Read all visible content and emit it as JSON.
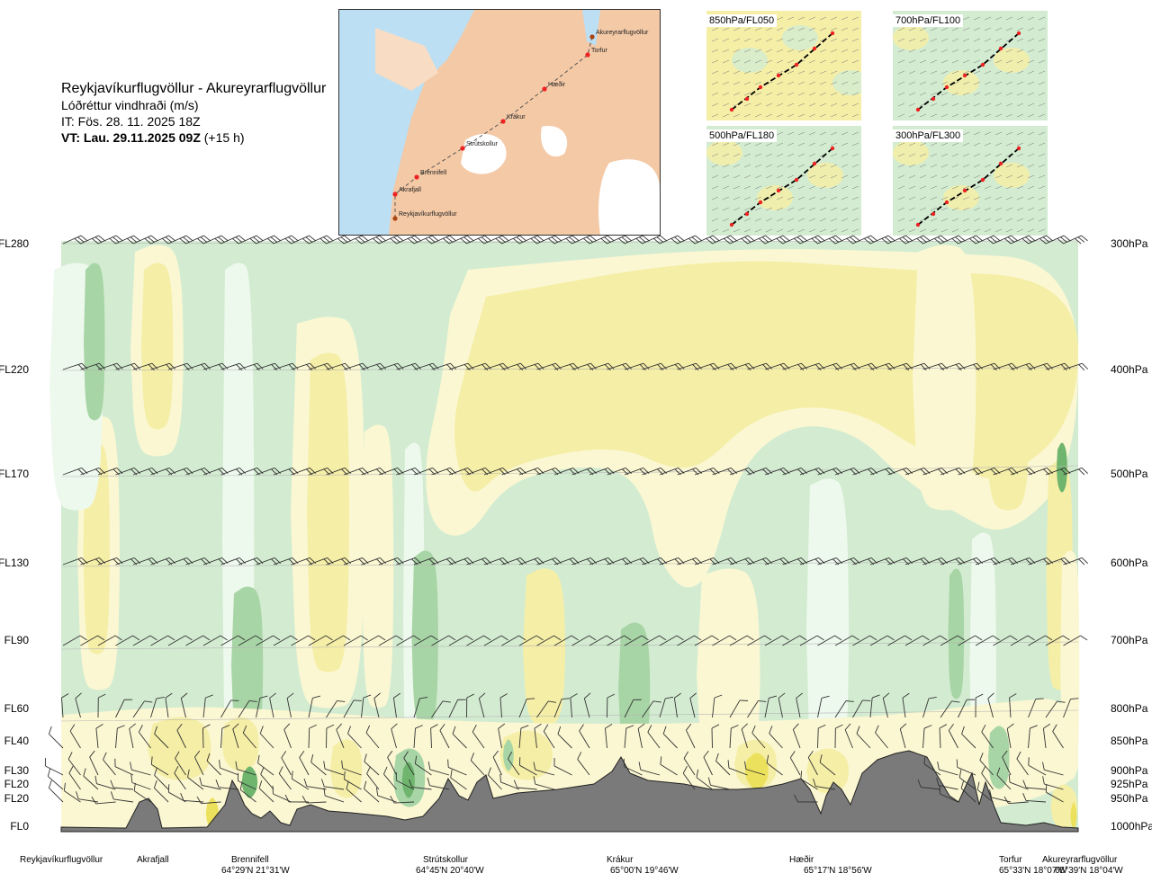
{
  "header": {
    "route": "Reykjavíkurflugvöllur - Akureyrarflugvöllur",
    "variable": "Lóðréttur vindhraði (m/s)",
    "issue": "IT: Fös. 28. 11. 2025 18Z",
    "valid_bold": "VT: Lau. 29.11.2025 09Z",
    "valid_offset": "(+15 h)"
  },
  "route_map": {
    "waypoints": [
      {
        "name": "Akureyrarflugvöllur"
      },
      {
        "name": "Torfur"
      },
      {
        "name": "Hæðir"
      },
      {
        "name": "Krákur"
      },
      {
        "name": "Strútskollur"
      },
      {
        "name": "Brennifell"
      },
      {
        "name": "Akrafjall"
      },
      {
        "name": "Reykjavíkurflugvöllur"
      }
    ]
  },
  "mini_maps": [
    {
      "label": "850hPa/FL050"
    },
    {
      "label": "700hPa/FL100"
    },
    {
      "label": "500hPa/FL180"
    },
    {
      "label": "300hPa/FL300"
    }
  ],
  "colors": {
    "green_light": "#d3ecd1",
    "green_mid": "#a8d5a6",
    "green_dark": "#6fb56e",
    "very_pale": "#eef9ee",
    "cream": "#fbf7d2",
    "yellow": "#f5eea6",
    "yellow_dark": "#ece15c",
    "terrain": "#7a7a7a",
    "map_land": "#f4c9a6",
    "map_sea": "#bcdff3"
  },
  "chart_data": {
    "type": "heatmap",
    "title": "Lóðréttur vindhraði (m/s)",
    "flight_levels": [
      {
        "fl": "FL280",
        "hpa": "300hPa"
      },
      {
        "fl": "FL220",
        "hpa": "400hPa"
      },
      {
        "fl": "FL170",
        "hpa": "500hPa"
      },
      {
        "fl": "FL130",
        "hpa": "600hPa"
      },
      {
        "fl": "FL90",
        "hpa": "700hPa"
      },
      {
        "fl": "FL60",
        "hpa": "800hPa"
      },
      {
        "fl": "FL40",
        "hpa": "850hPa"
      },
      {
        "fl": "FL30",
        "hpa": "900hPa"
      },
      {
        "fl": "FL20",
        "hpa": "925hPa"
      },
      {
        "fl": "FL20",
        "hpa": "950hPa"
      },
      {
        "fl": "FL0",
        "hpa": "1000hPa"
      }
    ],
    "stations": [
      {
        "name": "Reykjavíkurflugvöllur",
        "coords": ""
      },
      {
        "name": "Akrafjall",
        "coords": ""
      },
      {
        "name": "Brennifell",
        "coords": "64°29'N 21°31'W"
      },
      {
        "name": "Strútskollur",
        "coords": "64°45'N 20°40'W"
      },
      {
        "name": "Krákur",
        "coords": "65°00'N 19°46'W"
      },
      {
        "name": "Hæðir",
        "coords": "65°17'N 18°56'W"
      },
      {
        "name": "Torfur",
        "coords": "65°33'N 18°07'W"
      },
      {
        "name": "Akureyrarflugvöllur",
        "coords": "65°39'N 18°04'W"
      }
    ]
  }
}
